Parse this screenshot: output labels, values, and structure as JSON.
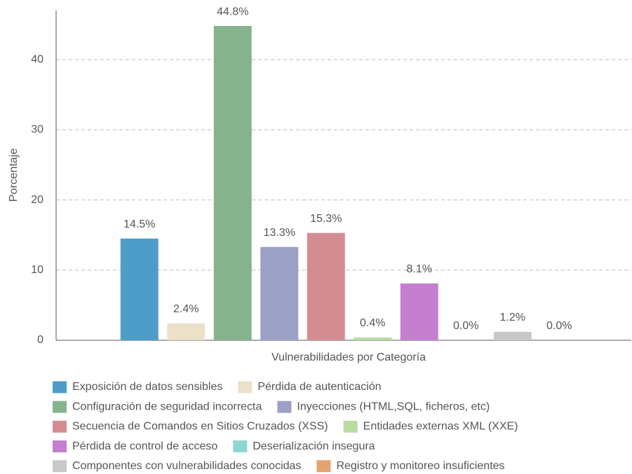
{
  "chart_data": {
    "type": "bar",
    "ylabel": "Porcentaje",
    "xlabel": "Vulnerabilidades por Categoría",
    "ylim": [
      0,
      47
    ],
    "yticks": [
      0,
      10,
      20,
      30,
      40
    ],
    "grid": true,
    "series": [
      {
        "name": "Exposición de datos sensibles",
        "color": "#4e9dc8",
        "values": [
          14.5
        ],
        "value_labels": [
          "14.5%"
        ]
      },
      {
        "name": "Pérdida de autenticación",
        "color": "#ede0c8",
        "values": [
          2.4
        ],
        "value_labels": [
          "2.4%"
        ]
      },
      {
        "name": "Configuración de seguridad incorrecta",
        "color": "#86b38e",
        "values": [
          44.8
        ],
        "value_labels": [
          "44.8%"
        ]
      },
      {
        "name": "Inyecciones (HTML,SQL, ficheros, etc)",
        "color": "#9c9fc6",
        "values": [
          13.3
        ],
        "value_labels": [
          "13.3%"
        ]
      },
      {
        "name": "Secuencia de Comandos en Sitios Cruzados (XSS)",
        "color": "#d48c93",
        "values": [
          15.3
        ],
        "value_labels": [
          "15.3%"
        ]
      },
      {
        "name": "Entidades externas XML (XXE)",
        "color": "#b9dca0",
        "values": [
          0.4
        ],
        "value_labels": [
          "0.4%"
        ]
      },
      {
        "name": "Pérdida de control de acceso",
        "color": "#c47fcf",
        "values": [
          8.1
        ],
        "value_labels": [
          "8.1%"
        ]
      },
      {
        "name": "Deserialización insegura",
        "color": "#8ed6d0",
        "values": [
          0.0
        ],
        "value_labels": [
          "0.0%"
        ]
      },
      {
        "name": "Componentes con vulnerabilidades conocidas",
        "color": "#c8c8c8",
        "values": [
          1.2
        ],
        "value_labels": [
          "1.2%"
        ]
      },
      {
        "name": "Registro y monitoreo insuficientes",
        "color": "#e2a470",
        "values": [
          0.0
        ],
        "value_labels": [
          "0.0%"
        ]
      }
    ]
  }
}
